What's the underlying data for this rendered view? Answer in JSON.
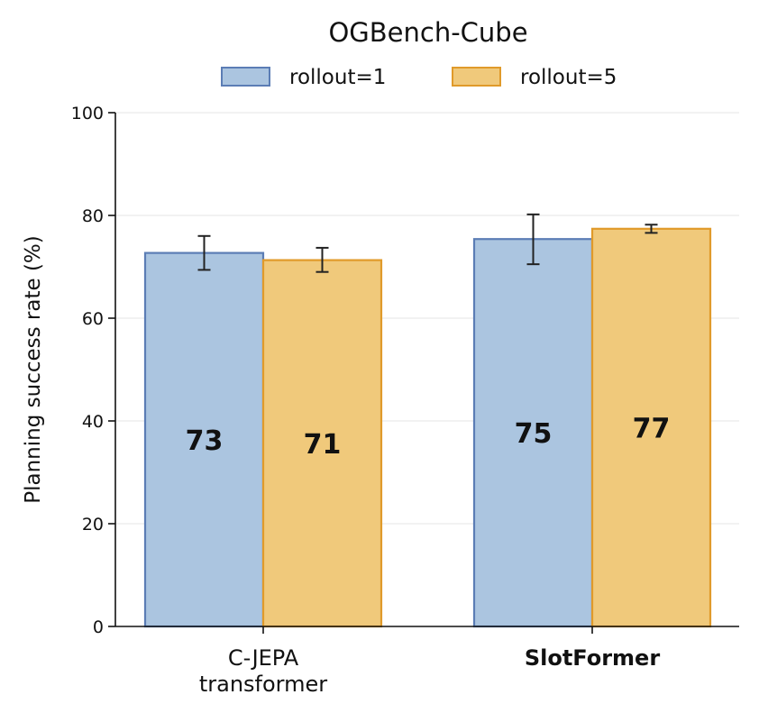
{
  "chart_data": {
    "type": "bar",
    "title": "OGBench-Cube",
    "xlabel": "",
    "ylabel": "Planning success rate (%)",
    "ylim": [
      0,
      100
    ],
    "yticks": [
      0,
      20,
      40,
      60,
      80,
      100
    ],
    "grid": "horizontal",
    "legend": "top-center",
    "categories": [
      {
        "lines": [
          "C-JEPA",
          "transformer"
        ],
        "bold": false
      },
      {
        "lines": [
          "SlotFormer"
        ],
        "bold": true
      }
    ],
    "series": [
      {
        "name": "rollout=1",
        "fill": "#abc5e0",
        "edge": "#5b7db5",
        "values": [
          72.7,
          75.4
        ],
        "error_low": [
          69.4,
          70.5
        ],
        "error_high": [
          76.0,
          80.2
        ],
        "labels": [
          "73",
          "75"
        ]
      },
      {
        "name": "rollout=5",
        "fill": "#f0c97b",
        "edge": "#e09a2a",
        "values": [
          71.3,
          77.4
        ],
        "error_low": [
          69.0,
          76.6
        ],
        "error_high": [
          73.7,
          78.2
        ],
        "labels": [
          "71",
          "77"
        ]
      }
    ]
  }
}
